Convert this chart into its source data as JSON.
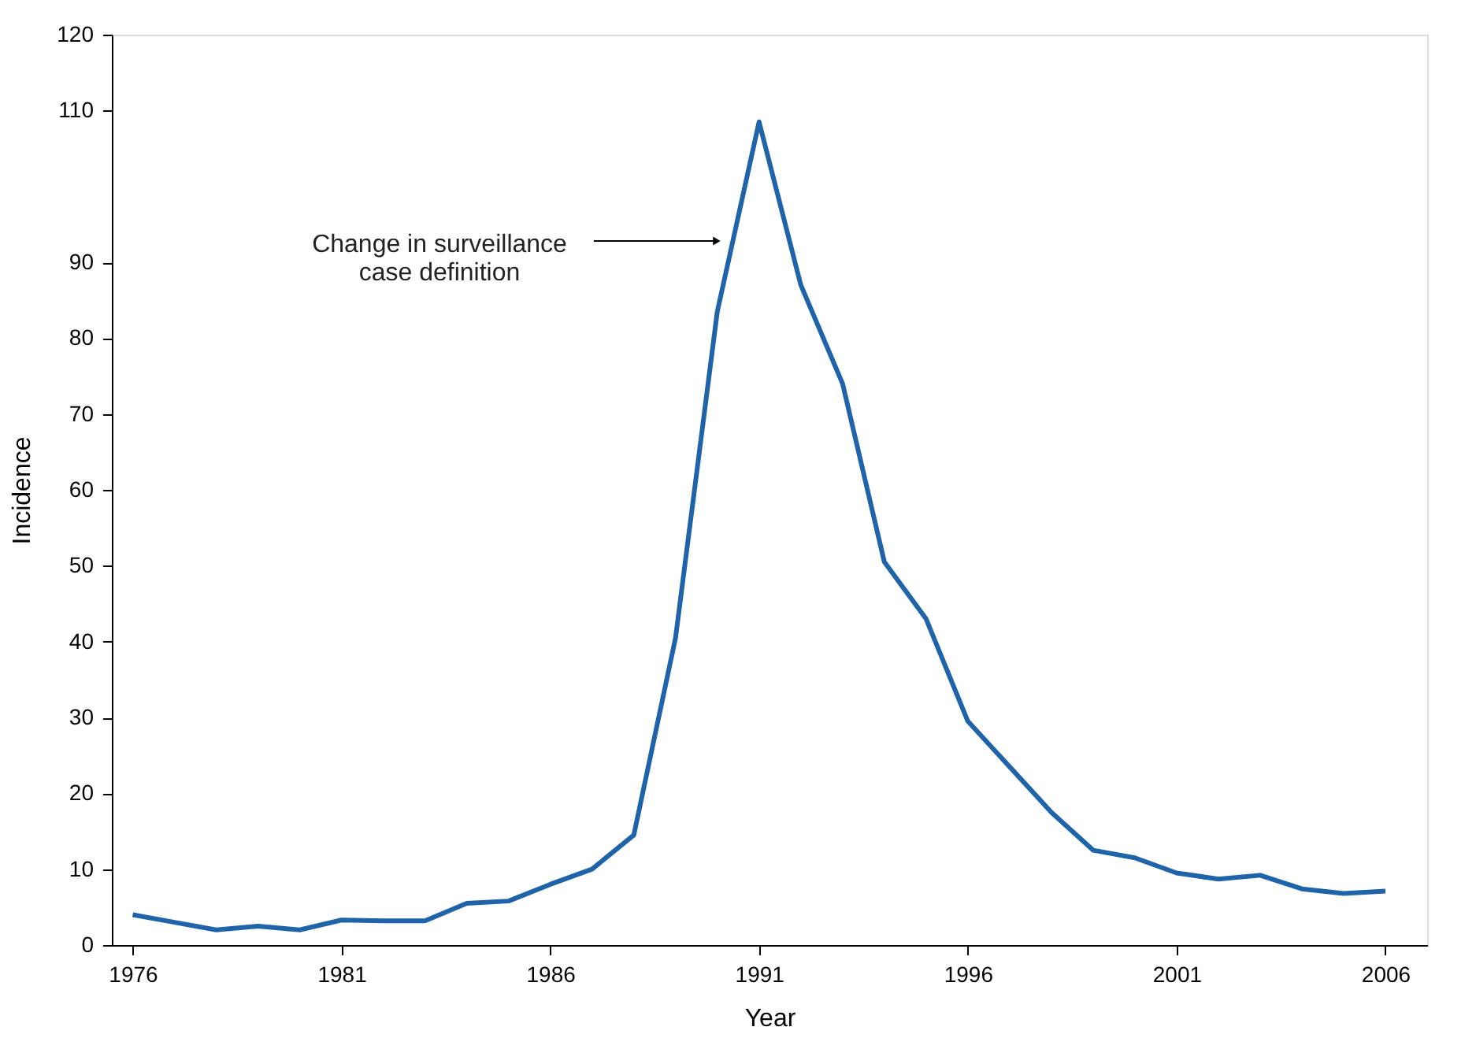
{
  "chart_data": {
    "type": "line",
    "xlabel": "Year",
    "ylabel": "Incidence",
    "x": [
      1976,
      1977,
      1978,
      1979,
      1980,
      1981,
      1982,
      1983,
      1984,
      1985,
      1986,
      1987,
      1988,
      1989,
      1990,
      1991,
      1992,
      1993,
      1994,
      1995,
      1996,
      1997,
      1998,
      1999,
      2000,
      2001,
      2002,
      2003,
      2004,
      2005,
      2006
    ],
    "series": [
      {
        "color": "#1f63a8",
        "values": [
          4.0,
          3.0,
          2.0,
          2.5,
          2.0,
          3.3,
          3.2,
          3.2,
          5.5,
          5.8,
          8.0,
          10.0,
          14.5,
          40.5,
          83.5,
          108.5,
          87,
          74,
          50.5,
          43,
          29.5,
          23.5,
          17.5,
          12.5,
          11.5,
          9.5,
          8.7,
          9.2,
          7.4,
          6.8,
          7.1
        ]
      }
    ],
    "xlim": [
      1975.5,
      2007
    ],
    "xticks": [
      1976,
      1981,
      1986,
      1991,
      1996,
      2001,
      2006
    ],
    "ylim": [
      0,
      120
    ],
    "yticks": [
      0,
      10,
      20,
      30,
      40,
      50,
      60,
      70,
      80,
      90,
      110,
      120
    ],
    "annotations": [
      "Change in surveillance\ncase definition"
    ],
    "grid": false,
    "marker": "none",
    "line_style": "solid"
  }
}
